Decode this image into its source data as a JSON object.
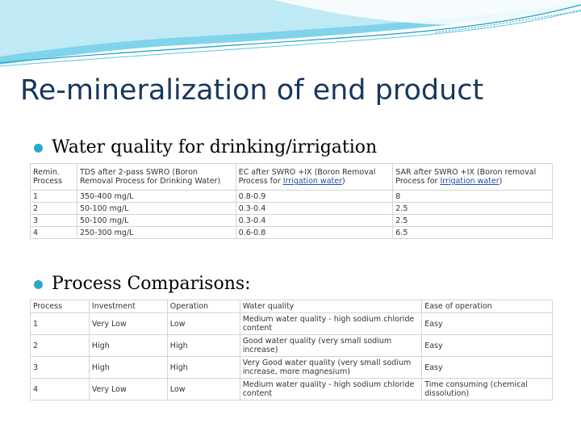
{
  "slide": {
    "title": "Re-mineralization of end product",
    "bullet1": "Water quality for drinking/irrigation",
    "bullet2": "Process Comparisons:"
  },
  "table1": {
    "headers": {
      "col1": "Remin. Process",
      "col2": "TDS after 2-pass SWRO (Boron Removal Process for Drinking Water)",
      "col3_a": "EC after SWRO +IX (Boron Removal Process for ",
      "col3_link": "Irrigation water",
      "col3_b": ")",
      "col4_a": "SAR after SWRO +IX (Boron removal Process for ",
      "col4_link": "Irrigation water",
      "col4_b": ")"
    },
    "rows": [
      [
        "1",
        "350-400 mg/L",
        "0.8-0.9",
        "8"
      ],
      [
        "2",
        "50-100 mg/L",
        "0.3-0.4",
        "2.5"
      ],
      [
        "3",
        "50-100 mg/L",
        "0.3-0.4",
        "2.5"
      ],
      [
        "4",
        "250-300 mg/L",
        "0.6-0.8",
        "6.5"
      ]
    ]
  },
  "table2": {
    "headers": [
      "Process",
      "Investment",
      "Operation",
      "Water quality",
      "Ease of operation"
    ],
    "rows": [
      [
        "1",
        "Very Low",
        "Low",
        "Medium water quality - high sodium chloride content",
        "Easy"
      ],
      [
        "2",
        "High",
        "High",
        "Good water quality (very small sodium increase)",
        "Easy"
      ],
      [
        "3",
        "High",
        "High",
        "Very Good water quality (very small sodium increase, more magnesium)",
        "Easy"
      ],
      [
        "4",
        "Very Low",
        "Low",
        "Medium water quality - high sodium chloride content",
        "Time consuming (chemical dissolution)"
      ]
    ]
  }
}
